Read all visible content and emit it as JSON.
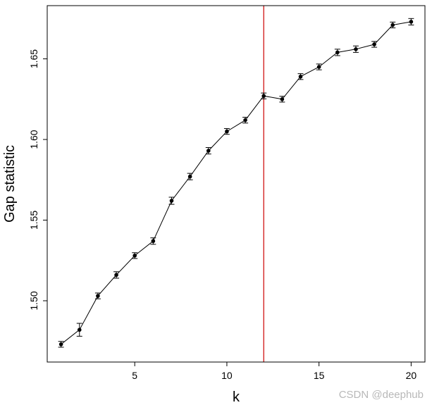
{
  "chart_data": {
    "type": "line",
    "title": "",
    "xlabel": "k",
    "ylabel": "Gap statistic",
    "xlim": [
      0.25,
      20.75
    ],
    "ylim": [
      1.462,
      1.683
    ],
    "xticks": [
      5,
      10,
      15,
      20
    ],
    "yticks": [
      1.5,
      1.55,
      1.6,
      1.65
    ],
    "ytick_labels": [
      "1.50",
      "1.55",
      "1.60",
      "1.65"
    ],
    "grid": false,
    "legend": "none",
    "line_color": "#000000",
    "vline": {
      "x": 12,
      "color": "#cc0000"
    },
    "x": [
      1,
      2,
      3,
      4,
      5,
      6,
      7,
      8,
      9,
      10,
      11,
      12,
      13,
      14,
      15,
      16,
      17,
      18,
      19,
      20
    ],
    "y": [
      1.473,
      1.482,
      1.503,
      1.516,
      1.528,
      1.537,
      1.562,
      1.577,
      1.593,
      1.605,
      1.612,
      1.627,
      1.625,
      1.639,
      1.645,
      1.654,
      1.656,
      1.659,
      1.671,
      1.673
    ],
    "err": [
      0.0018,
      0.004,
      0.0018,
      0.002,
      0.0018,
      0.002,
      0.0022,
      0.002,
      0.002,
      0.0018,
      0.0018,
      0.0018,
      0.0018,
      0.0018,
      0.0018,
      0.002,
      0.002,
      0.0018,
      0.0018,
      0.002
    ]
  },
  "watermark": "CSDN @deephub"
}
